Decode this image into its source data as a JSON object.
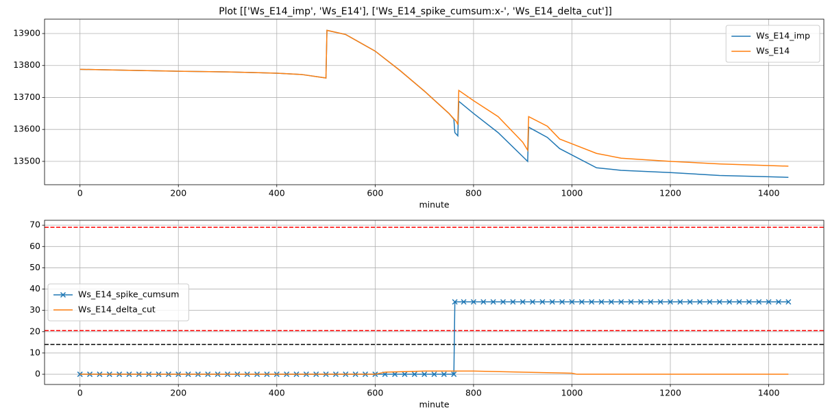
{
  "title": "Plot [['Ws_E14_imp', 'Ws_E14'], ['Ws_E14_spike_cumsum:x-', 'Ws_E14_delta_cut']]",
  "chart_data": [
    {
      "type": "line",
      "xlabel": "minute",
      "xlim": [
        -72,
        1512
      ],
      "xticks": [
        0,
        200,
        400,
        600,
        800,
        1000,
        1200,
        1400
      ],
      "ylim": [
        13427,
        13945
      ],
      "yticks": [
        13500,
        13600,
        13700,
        13800,
        13900
      ],
      "grid": true,
      "legend": "upper right",
      "series": [
        {
          "name": "Ws_E14_imp",
          "color": "#1f77b4",
          "x": [
            0,
            100,
            200,
            300,
            400,
            450,
            500,
            502,
            540,
            600,
            650,
            700,
            750,
            760,
            762,
            768,
            770,
            800,
            850,
            900,
            910,
            912,
            950,
            975,
            1000,
            1050,
            1100,
            1200,
            1300,
            1400,
            1440
          ],
          "values": [
            13788,
            13785,
            13782,
            13780,
            13776,
            13772,
            13761,
            13910,
            13897,
            13845,
            13785,
            13720,
            13650,
            13632,
            13590,
            13580,
            13688,
            13650,
            13590,
            13515,
            13500,
            13607,
            13575,
            13540,
            13520,
            13480,
            13472,
            13465,
            13456,
            13452,
            13450
          ]
        },
        {
          "name": "Ws_E14",
          "color": "#ff7f0e",
          "x": [
            0,
            100,
            200,
            300,
            400,
            450,
            500,
            502,
            540,
            600,
            650,
            700,
            750,
            765,
            768,
            770,
            800,
            850,
            900,
            910,
            912,
            950,
            975,
            1000,
            1050,
            1100,
            1200,
            1300,
            1400,
            1440
          ],
          "values": [
            13788,
            13785,
            13782,
            13780,
            13776,
            13772,
            13761,
            13910,
            13897,
            13845,
            13785,
            13720,
            13650,
            13625,
            13615,
            13722,
            13690,
            13640,
            13560,
            13535,
            13640,
            13610,
            13570,
            13555,
            13525,
            13510,
            13500,
            13492,
            13487,
            13485
          ]
        }
      ]
    },
    {
      "type": "line",
      "xlabel": "minute",
      "xlim": [
        -72,
        1512
      ],
      "xticks": [
        0,
        200,
        400,
        600,
        800,
        1000,
        1200,
        1400
      ],
      "ylim": [
        -4.8,
        72.3
      ],
      "yticks": [
        0,
        10,
        20,
        30,
        40,
        50,
        60,
        70
      ],
      "grid": true,
      "legend": "center left",
      "hlines": [
        {
          "value": 69,
          "color": "red"
        },
        {
          "value": 20.5,
          "color": "red"
        },
        {
          "value": 14,
          "color": "black"
        }
      ],
      "series": [
        {
          "name": "Ws_E14_spike_cumsum",
          "color": "#1f77b4",
          "marker": "x",
          "x": [
            0,
            20,
            40,
            60,
            80,
            100,
            120,
            140,
            160,
            180,
            200,
            220,
            240,
            260,
            280,
            300,
            320,
            340,
            360,
            380,
            400,
            420,
            440,
            460,
            480,
            500,
            520,
            540,
            560,
            580,
            600,
            620,
            640,
            660,
            680,
            700,
            720,
            740,
            760,
            762,
            780,
            800,
            820,
            840,
            860,
            880,
            900,
            920,
            940,
            960,
            980,
            1000,
            1020,
            1040,
            1060,
            1080,
            1100,
            1120,
            1140,
            1160,
            1180,
            1200,
            1220,
            1240,
            1260,
            1280,
            1300,
            1320,
            1340,
            1360,
            1380,
            1400,
            1420,
            1440
          ],
          "values": [
            0,
            0,
            0,
            0,
            0,
            0,
            0,
            0,
            0,
            0,
            0,
            0,
            0,
            0,
            0,
            0,
            0,
            0,
            0,
            0,
            0,
            0,
            0,
            0,
            0,
            0,
            0,
            0,
            0,
            0,
            0,
            0,
            0,
            0,
            0,
            0,
            0,
            0,
            0,
            34,
            34,
            34,
            34,
            34,
            34,
            34,
            34,
            34,
            34,
            34,
            34,
            34,
            34,
            34,
            34,
            34,
            34,
            34,
            34,
            34,
            34,
            34,
            34,
            34,
            34,
            34,
            34,
            34,
            34,
            34,
            34,
            34,
            34,
            34
          ]
        },
        {
          "name": "Ws_E14_delta_cut",
          "color": "#ff7f0e",
          "x": [
            0,
            600,
            620,
            700,
            765,
            770,
            800,
            900,
            1000,
            1010,
            1440
          ],
          "values": [
            0,
            0,
            1,
            1.5,
            1.5,
            1.5,
            1.5,
            1,
            0.5,
            0,
            0
          ]
        }
      ]
    }
  ]
}
